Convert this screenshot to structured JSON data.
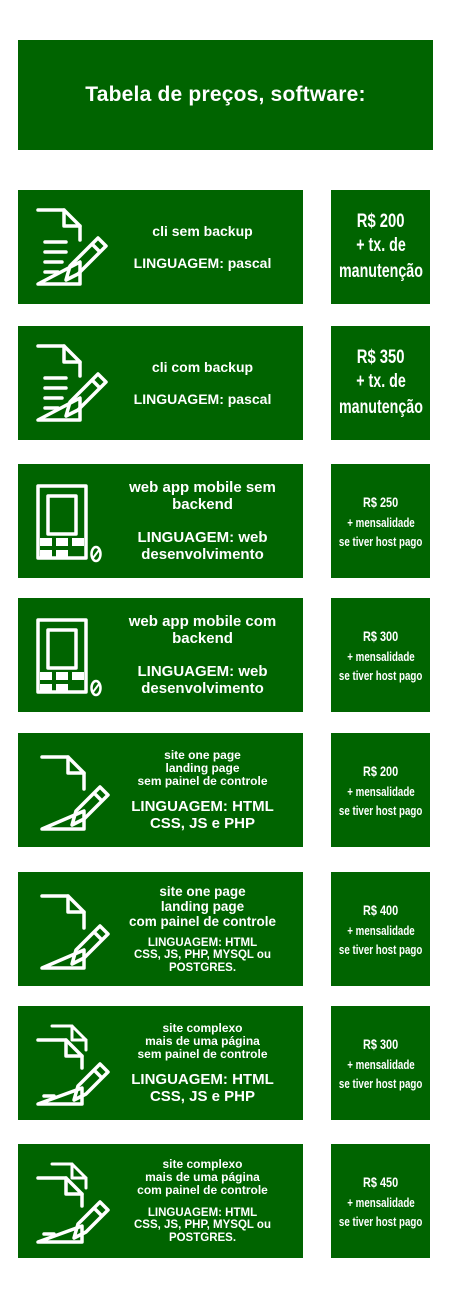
{
  "title": "Tabela de preços, software:",
  "items": [
    {
      "name": [
        "cli sem backup"
      ],
      "lang": [
        "LINGUAGEM: pascal"
      ],
      "price": "R$ 200",
      "note": [
        "+ tx. de",
        "manutenção"
      ],
      "icon": "document-pen-icon"
    },
    {
      "name": [
        "cli com backup"
      ],
      "lang": [
        "LINGUAGEM: pascal"
      ],
      "price": "R$ 350",
      "note": [
        "+ tx. de",
        "manutenção"
      ],
      "icon": "document-pen-icon"
    },
    {
      "name": [
        "web app mobile sem",
        "backend"
      ],
      "lang": [
        "LINGUAGEM: web",
        "desenvolvimento"
      ],
      "price": "R$ 250",
      "note": [
        "+ mensalidade",
        "se tiver host pago"
      ],
      "icon": "mobile-device-icon"
    },
    {
      "name": [
        "web app mobile com",
        "backend"
      ],
      "lang": [
        "LINGUAGEM: web",
        "desenvolvimento"
      ],
      "price": "R$ 300",
      "note": [
        "+ mensalidade",
        "se tiver host pago"
      ],
      "icon": "mobile-device-icon"
    },
    {
      "name": [
        "site  one page",
        "landing page",
        "sem painel de  controle"
      ],
      "lang": [
        "LINGUAGEM: HTML",
        "CSS, JS e PHP"
      ],
      "price": "R$ 200",
      "note": [
        "+ mensalidade",
        "se tiver host pago"
      ],
      "icon": "page-pen-icon"
    },
    {
      "name": [
        "site  one page",
        "landing page",
        "com painel de  controle"
      ],
      "lang": [
        "LINGUAGEM: HTML",
        "CSS, JS, PHP, MYSQL ou",
        "POSTGRES."
      ],
      "price": "R$ 400",
      "note": [
        "+ mensalidade",
        "se tiver host pago"
      ],
      "icon": "page-pen-icon"
    },
    {
      "name": [
        "site complexo",
        "mais de uma página",
        "sem painel de controle"
      ],
      "lang": [
        "LINGUAGEM: HTML",
        "CSS, JS e PHP"
      ],
      "price": "R$ 300",
      "note": [
        "+ mensalidade",
        "se tiver host pago"
      ],
      "icon": "multi-page-pen-icon"
    },
    {
      "name": [
        "site complexo",
        "mais de uma página",
        "com painel de controle"
      ],
      "lang": [
        "LINGUAGEM: HTML",
        "CSS, JS, PHP, MYSQL ou",
        "POSTGRES."
      ],
      "price": "R$ 450",
      "note": [
        "+ mensalidade",
        "se tiver host pago"
      ],
      "icon": "multi-page-pen-icon"
    }
  ]
}
